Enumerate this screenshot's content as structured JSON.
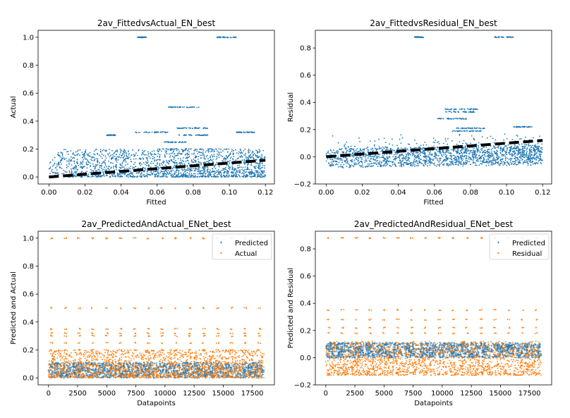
{
  "colors": {
    "blue": "#1f77b4",
    "orange": "#ff7f0e",
    "fit_line": "#000000"
  },
  "chart_data": [
    {
      "type": "scatter",
      "title": "2av_FittedvsActual_EN_best",
      "xlabel": "Fitted",
      "ylabel": "Actual",
      "xlim": [
        -0.006,
        0.125
      ],
      "ylim": [
        -0.05,
        1.05
      ],
      "xticks": [
        0.0,
        0.02,
        0.04,
        0.06,
        0.08,
        0.1,
        0.12
      ],
      "xtick_labels": [
        "0.00",
        "0.02",
        "0.04",
        "0.06",
        "0.08",
        "0.10",
        "0.12"
      ],
      "yticks": [
        0.0,
        0.2,
        0.4,
        0.6,
        0.8,
        1.0
      ],
      "ytick_labels": [
        "0.0",
        "0.2",
        "0.4",
        "0.6",
        "0.8",
        "1.0"
      ],
      "fit_line": {
        "x": [
          0.0,
          0.12
        ],
        "y": [
          0.0,
          0.12
        ],
        "style": "dashed"
      },
      "series": [
        {
          "color": "blue",
          "cloud": {
            "x_range": [
              0.0,
              0.12
            ],
            "y_range": [
              0.0,
              0.2
            ],
            "count": 1800
          },
          "levels": [
            {
              "y": 1.0,
              "x": [
                0.049,
                0.054
              ]
            },
            {
              "y": 1.0,
              "x": [
                0.093,
                0.104
              ]
            },
            {
              "y": 0.5,
              "x": [
                0.066,
                0.084
              ]
            },
            {
              "y": 0.35,
              "x": [
                0.071,
                0.088
              ]
            },
            {
              "y": 0.32,
              "x": [
                0.048,
                0.066
              ]
            },
            {
              "y": 0.32,
              "x": [
                0.104,
                0.114
              ]
            },
            {
              "y": 0.3,
              "x": [
                0.032,
                0.037
              ]
            },
            {
              "y": 0.3,
              "x": [
                0.072,
                0.088
              ]
            },
            {
              "y": 0.25,
              "x": [
                0.064,
                0.076
              ]
            },
            {
              "y": 0.2,
              "x": [
                0.06,
                0.1
              ]
            }
          ]
        }
      ]
    },
    {
      "type": "scatter",
      "title": "2av_FittedvsResidual_EN_best",
      "xlabel": "Fitted",
      "ylabel": "Residual",
      "xlim": [
        -0.006,
        0.125
      ],
      "ylim": [
        -0.2,
        0.93
      ],
      "xticks": [
        0.0,
        0.02,
        0.04,
        0.06,
        0.08,
        0.1,
        0.12
      ],
      "xtick_labels": [
        "0.00",
        "0.02",
        "0.04",
        "0.06",
        "0.08",
        "0.10",
        "0.12"
      ],
      "yticks": [
        -0.2,
        0.0,
        0.2,
        0.4,
        0.6,
        0.8
      ],
      "ytick_labels": [
        "−0.2",
        "0.0",
        "0.2",
        "0.4",
        "0.6",
        "0.8"
      ],
      "fit_line": {
        "x": [
          0.0,
          0.12
        ],
        "y": [
          0.0,
          0.12
        ],
        "style": "dashed"
      },
      "series": [
        {
          "color": "blue",
          "cloud": {
            "x_range": [
              0.0,
              0.12
            ],
            "y_range": [
              -0.12,
              0.12
            ],
            "count": 1800
          },
          "levels": [
            {
              "y": 0.88,
              "x": [
                0.049,
                0.054
              ]
            },
            {
              "y": 0.88,
              "x": [
                0.093,
                0.104
              ]
            },
            {
              "y": 0.35,
              "x": [
                0.066,
                0.084
              ]
            },
            {
              "y": 0.33,
              "x": [
                0.066,
                0.082
              ]
            },
            {
              "y": 0.28,
              "x": [
                0.06,
                0.078
              ]
            },
            {
              "y": 0.22,
              "x": [
                0.104,
                0.114
              ]
            },
            {
              "y": 0.21,
              "x": [
                0.072,
                0.088
              ]
            },
            {
              "y": 0.19,
              "x": [
                0.07,
                0.086
              ]
            }
          ]
        }
      ]
    },
    {
      "type": "scatter",
      "title": "2av_PredictedAndActual_ENet_best",
      "xlabel": "Datapoints",
      "ylabel": "Predicted and Actual",
      "xlim": [
        -900,
        19400
      ],
      "ylim": [
        -0.05,
        1.05
      ],
      "xticks": [
        0,
        2500,
        5000,
        7500,
        10000,
        12500,
        15000,
        17500
      ],
      "xtick_labels": [
        "0",
        "2500",
        "5000",
        "7500",
        "10000",
        "12500",
        "15000",
        "17500"
      ],
      "yticks": [
        0.0,
        0.2,
        0.4,
        0.6,
        0.8,
        1.0
      ],
      "ytick_labels": [
        "0.0",
        "0.2",
        "0.4",
        "0.6",
        "0.8",
        "1.0"
      ],
      "legend": {
        "position": "top-right"
      },
      "series": [
        {
          "name": "Predicted",
          "color": "blue",
          "marker": "+",
          "band": [
            0.0,
            0.11
          ],
          "x_range": [
            0,
            18500
          ],
          "count": 1400
        },
        {
          "name": "Actual",
          "color": "orange",
          "marker": ".",
          "band": [
            0.0,
            0.2
          ],
          "x_range": [
            0,
            18500
          ],
          "count": 1800,
          "periodic_levels": [
            1.0,
            0.5,
            0.35,
            0.32,
            0.3,
            0.25,
            0.2
          ],
          "period": 1190
        }
      ]
    },
    {
      "type": "scatter",
      "title": "2av_PredictedAndResidual_ENet_best",
      "xlabel": "Datapoints",
      "ylabel": "Predicted and Residual",
      "xlim": [
        -900,
        19400
      ],
      "ylim": [
        -0.2,
        0.93
      ],
      "xticks": [
        0,
        2500,
        5000,
        7500,
        10000,
        12500,
        15000,
        17500
      ],
      "xtick_labels": [
        "0",
        "2500",
        "5000",
        "7500",
        "10000",
        "12500",
        "15000",
        "17500"
      ],
      "yticks": [
        -0.2,
        0.0,
        0.2,
        0.4,
        0.6,
        0.8
      ],
      "ytick_labels": [
        "−0.2",
        "0.0",
        "0.2",
        "0.4",
        "0.6",
        "0.8"
      ],
      "legend": {
        "position": "top-right"
      },
      "series": [
        {
          "name": "Predicted",
          "color": "blue",
          "marker": "+",
          "band": [
            0.0,
            0.11
          ],
          "x_range": [
            0,
            18500
          ],
          "count": 1400
        },
        {
          "name": "Residual",
          "color": "orange",
          "marker": ".",
          "band": [
            -0.13,
            0.12
          ],
          "x_range": [
            0,
            18500
          ],
          "count": 1800,
          "periodic_levels": [
            0.88,
            0.35,
            0.28,
            0.22,
            0.18
          ],
          "period": 1190
        }
      ]
    }
  ]
}
